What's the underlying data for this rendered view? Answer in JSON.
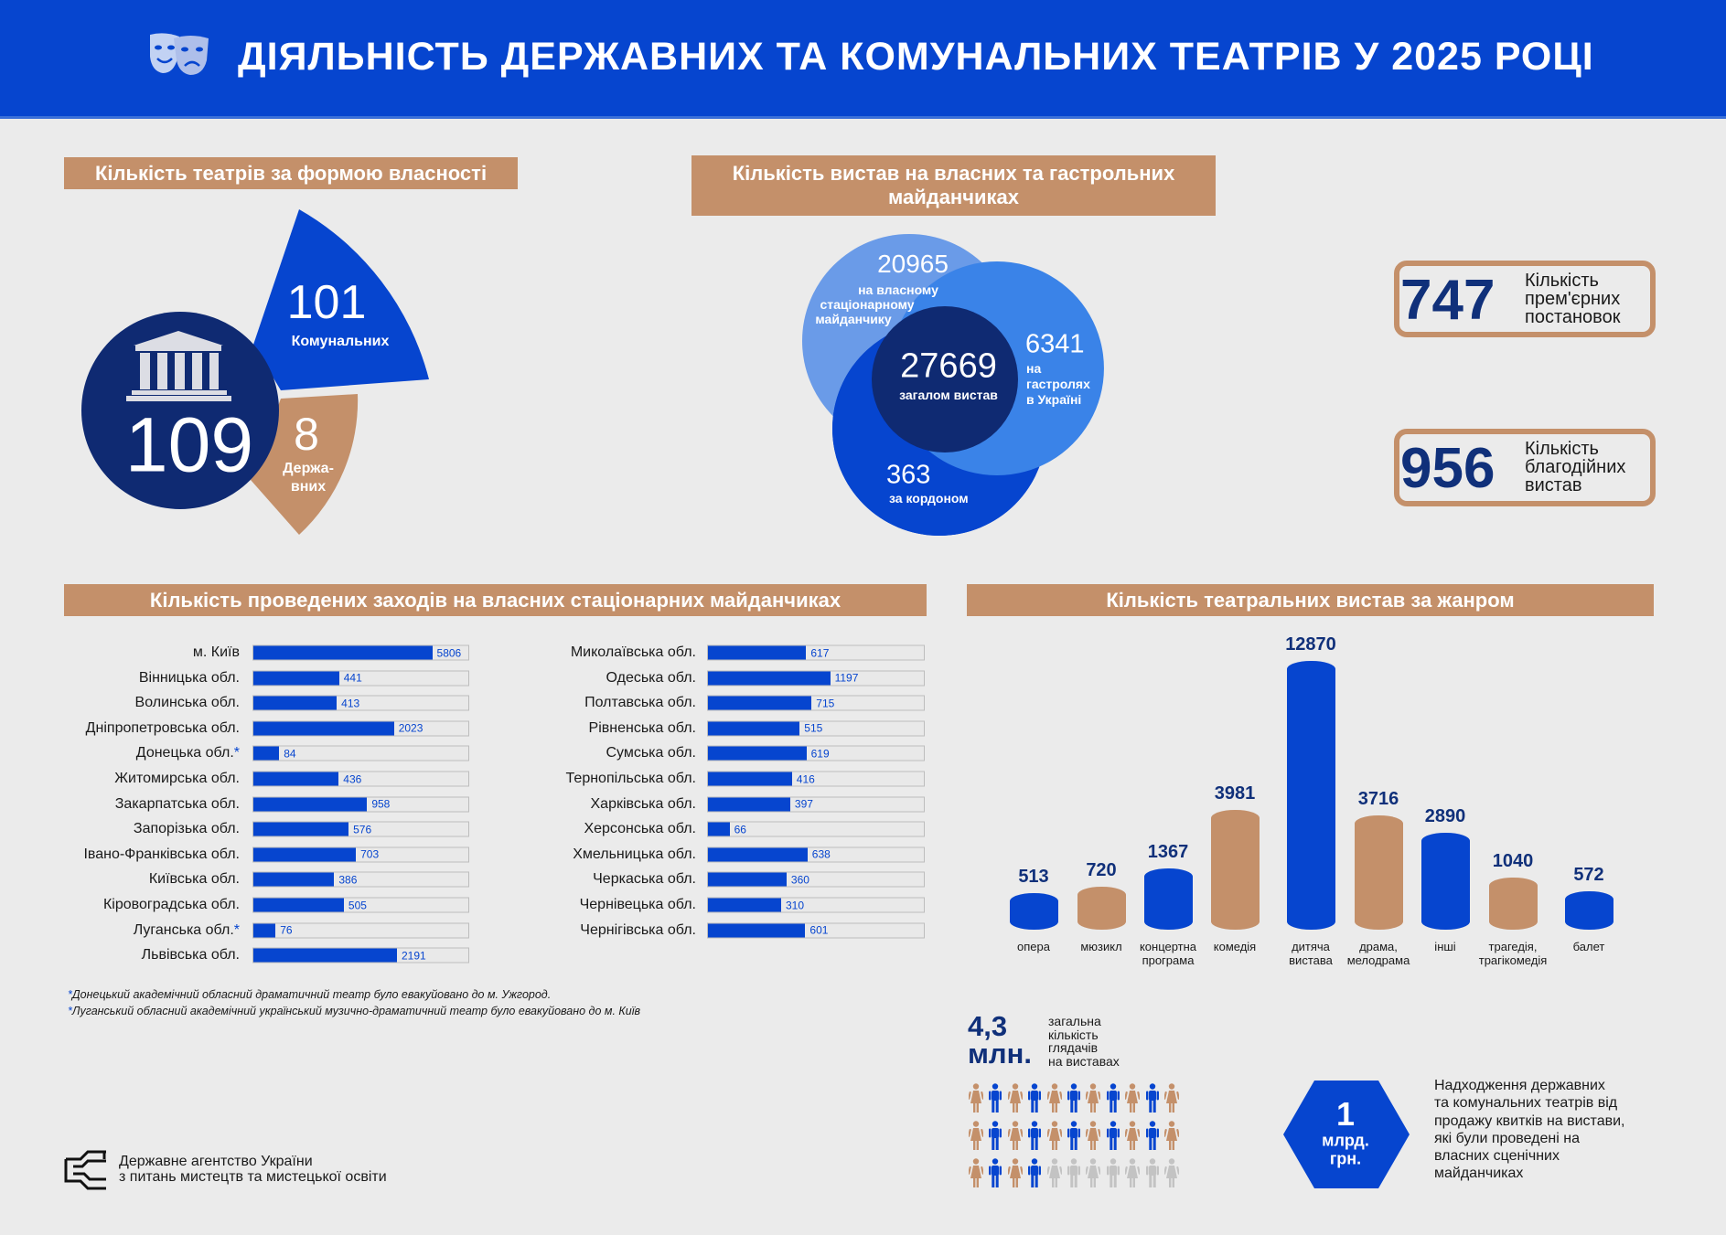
{
  "header": {
    "title": "ДІЯЛЬНІСТЬ ДЕРЖАВНИХ ТА КОМУНАЛЬНИХ ТЕАТРІВ У 2025 РОЦІ",
    "icon": "theatre-masks-icon"
  },
  "colors": {
    "primary_blue": "#0645cf",
    "tan": "#c4906a",
    "navy": "#0f2a72",
    "light_blue": "#6a9be8",
    "mid_blue": "#3a83e8",
    "gray_person": "#c3c3c3",
    "background": "#ebebeb"
  },
  "ownership": {
    "title": "Кількість театрів за формою власності",
    "total": "109",
    "communal_value": "101",
    "communal_label": "Комунальних",
    "state_value": "8",
    "state_label_1": "Держа-",
    "state_label_2": "вних"
  },
  "performances": {
    "title_1": "Кількість вистав на власних та гастрольних",
    "title_2": "майданчиках",
    "own_value": "20965",
    "own_label_1": "на власному",
    "own_label_2": "стаціонарному",
    "own_label_3": "майданчику",
    "total_value": "27669",
    "total_label": "загалом вистав",
    "tour_value": "6341",
    "tour_label_1": "на",
    "tour_label_2": "гастролях",
    "tour_label_3": "в Україні",
    "abroad_value": "363",
    "abroad_label": "за кордоном"
  },
  "stats": [
    {
      "value": "747",
      "label_1": "Кількість",
      "label_2": "прем'єрних",
      "label_3": "постановок"
    },
    {
      "value": "956",
      "label_1": "Кількість",
      "label_2": "благодійних",
      "label_3": "вистав"
    }
  ],
  "regions": {
    "title": "Кількість проведених заходів на власних стаціонарних майданчиках",
    "left": [
      {
        "name": "м. Київ",
        "value": 5806
      },
      {
        "name": "Вінницька обл.",
        "value": 441
      },
      {
        "name": "Волинська обл.",
        "value": 413
      },
      {
        "name": "Дніпропетровська обл.",
        "value": 2023
      },
      {
        "name": "Донецька обл.",
        "value": 84,
        "star": "*"
      },
      {
        "name": "Житомирська обл.",
        "value": 436
      },
      {
        "name": "Закарпатська обл.",
        "value": 958
      },
      {
        "name": "Запорізька обл.",
        "value": 576
      },
      {
        "name": "Івано-Франківська обл.",
        "value": 703
      },
      {
        "name": "Київська обл.",
        "value": 386
      },
      {
        "name": "Кіровоградська обл.",
        "value": 505
      },
      {
        "name": "Луганська обл.",
        "value": 76,
        "star": "*"
      },
      {
        "name": "Львівська обл.",
        "value": 2191
      }
    ],
    "right": [
      {
        "name": "Миколаївська обл.",
        "value": 617
      },
      {
        "name": "Одеська обл.",
        "value": 1197
      },
      {
        "name": "Полтавська обл.",
        "value": 715
      },
      {
        "name": "Рівненська обл.",
        "value": 515
      },
      {
        "name": "Сумська обл.",
        "value": 619
      },
      {
        "name": "Тернопільська обл.",
        "value": 416
      },
      {
        "name": "Харківська обл.",
        "value": 397
      },
      {
        "name": "Херсонська обл.",
        "value": 66
      },
      {
        "name": "Хмельницька обл.",
        "value": 638
      },
      {
        "name": "Черкаська обл.",
        "value": 360
      },
      {
        "name": "Чернівецька обл.",
        "value": 310
      },
      {
        "name": "Чернігівська обл.",
        "value": 601
      }
    ],
    "footnotes": [
      {
        "star": "*",
        "text": "Донецький академічний обласний драматичний театр було евакуйовано до м. Ужгород."
      },
      {
        "star": "*",
        "text": "Луганський обласний академічний український музично-драматичний театр було евакуйовано до м. Київ"
      }
    ]
  },
  "chart_data": {
    "type": "bar",
    "title": "Кількість театральних вистав за жанром",
    "categories": [
      "опера",
      "мюзикл",
      "концертна програма",
      "комедія",
      "дитяча вистава",
      "драма, мелодрама",
      "інші",
      "трагедія, трагікомедія",
      "балет"
    ],
    "category_lines": [
      [
        "опера"
      ],
      [
        "мюзикл"
      ],
      [
        "концертна",
        "програма"
      ],
      [
        "комедія"
      ],
      [
        "дитяча",
        "вистава"
      ],
      [
        "драма,",
        "мелодрама"
      ],
      [
        "інші"
      ],
      [
        "трагедія,",
        "трагікомедія"
      ],
      [
        "балет"
      ]
    ],
    "values": [
      513,
      720,
      1367,
      3981,
      12870,
      3716,
      2890,
      1040,
      572
    ],
    "bar_colors": [
      "#0645cf",
      "#c4906a",
      "#0645cf",
      "#c4906a",
      "#0645cf",
      "#c4906a",
      "#0645cf",
      "#c4906a",
      "#0645cf"
    ],
    "data_labels": true,
    "grid": false
  },
  "audience": {
    "value_1": "4,3",
    "value_2": "млн.",
    "label": [
      "загальна",
      "кількість",
      "глядачів",
      "на виставах"
    ],
    "rows": [
      [
        "female",
        "male",
        "female",
        "male",
        "female",
        "male",
        "female",
        "male",
        "female",
        "male",
        "female"
      ],
      [
        "female",
        "male",
        "female",
        "male",
        "female",
        "male",
        "female",
        "male",
        "female",
        "male",
        "female"
      ],
      [
        "female",
        "male",
        "female",
        "male",
        "gray",
        "gray",
        "gray",
        "gray",
        "gray",
        "gray",
        "gray"
      ]
    ]
  },
  "revenue": {
    "value": "1",
    "unit_1": "млрд.",
    "unit_2": "грн.",
    "description": [
      "Надходження державних",
      "та комунальних театрів від",
      "продажу квитків на вистави,",
      "які були проведені на",
      "власних сценічних",
      "майданчиках"
    ]
  },
  "footer": {
    "org_line_1": "Державне агентство України",
    "org_line_2": "з питань мистецтв та мистецької освіти",
    "logo": "agency-logo-icon"
  }
}
